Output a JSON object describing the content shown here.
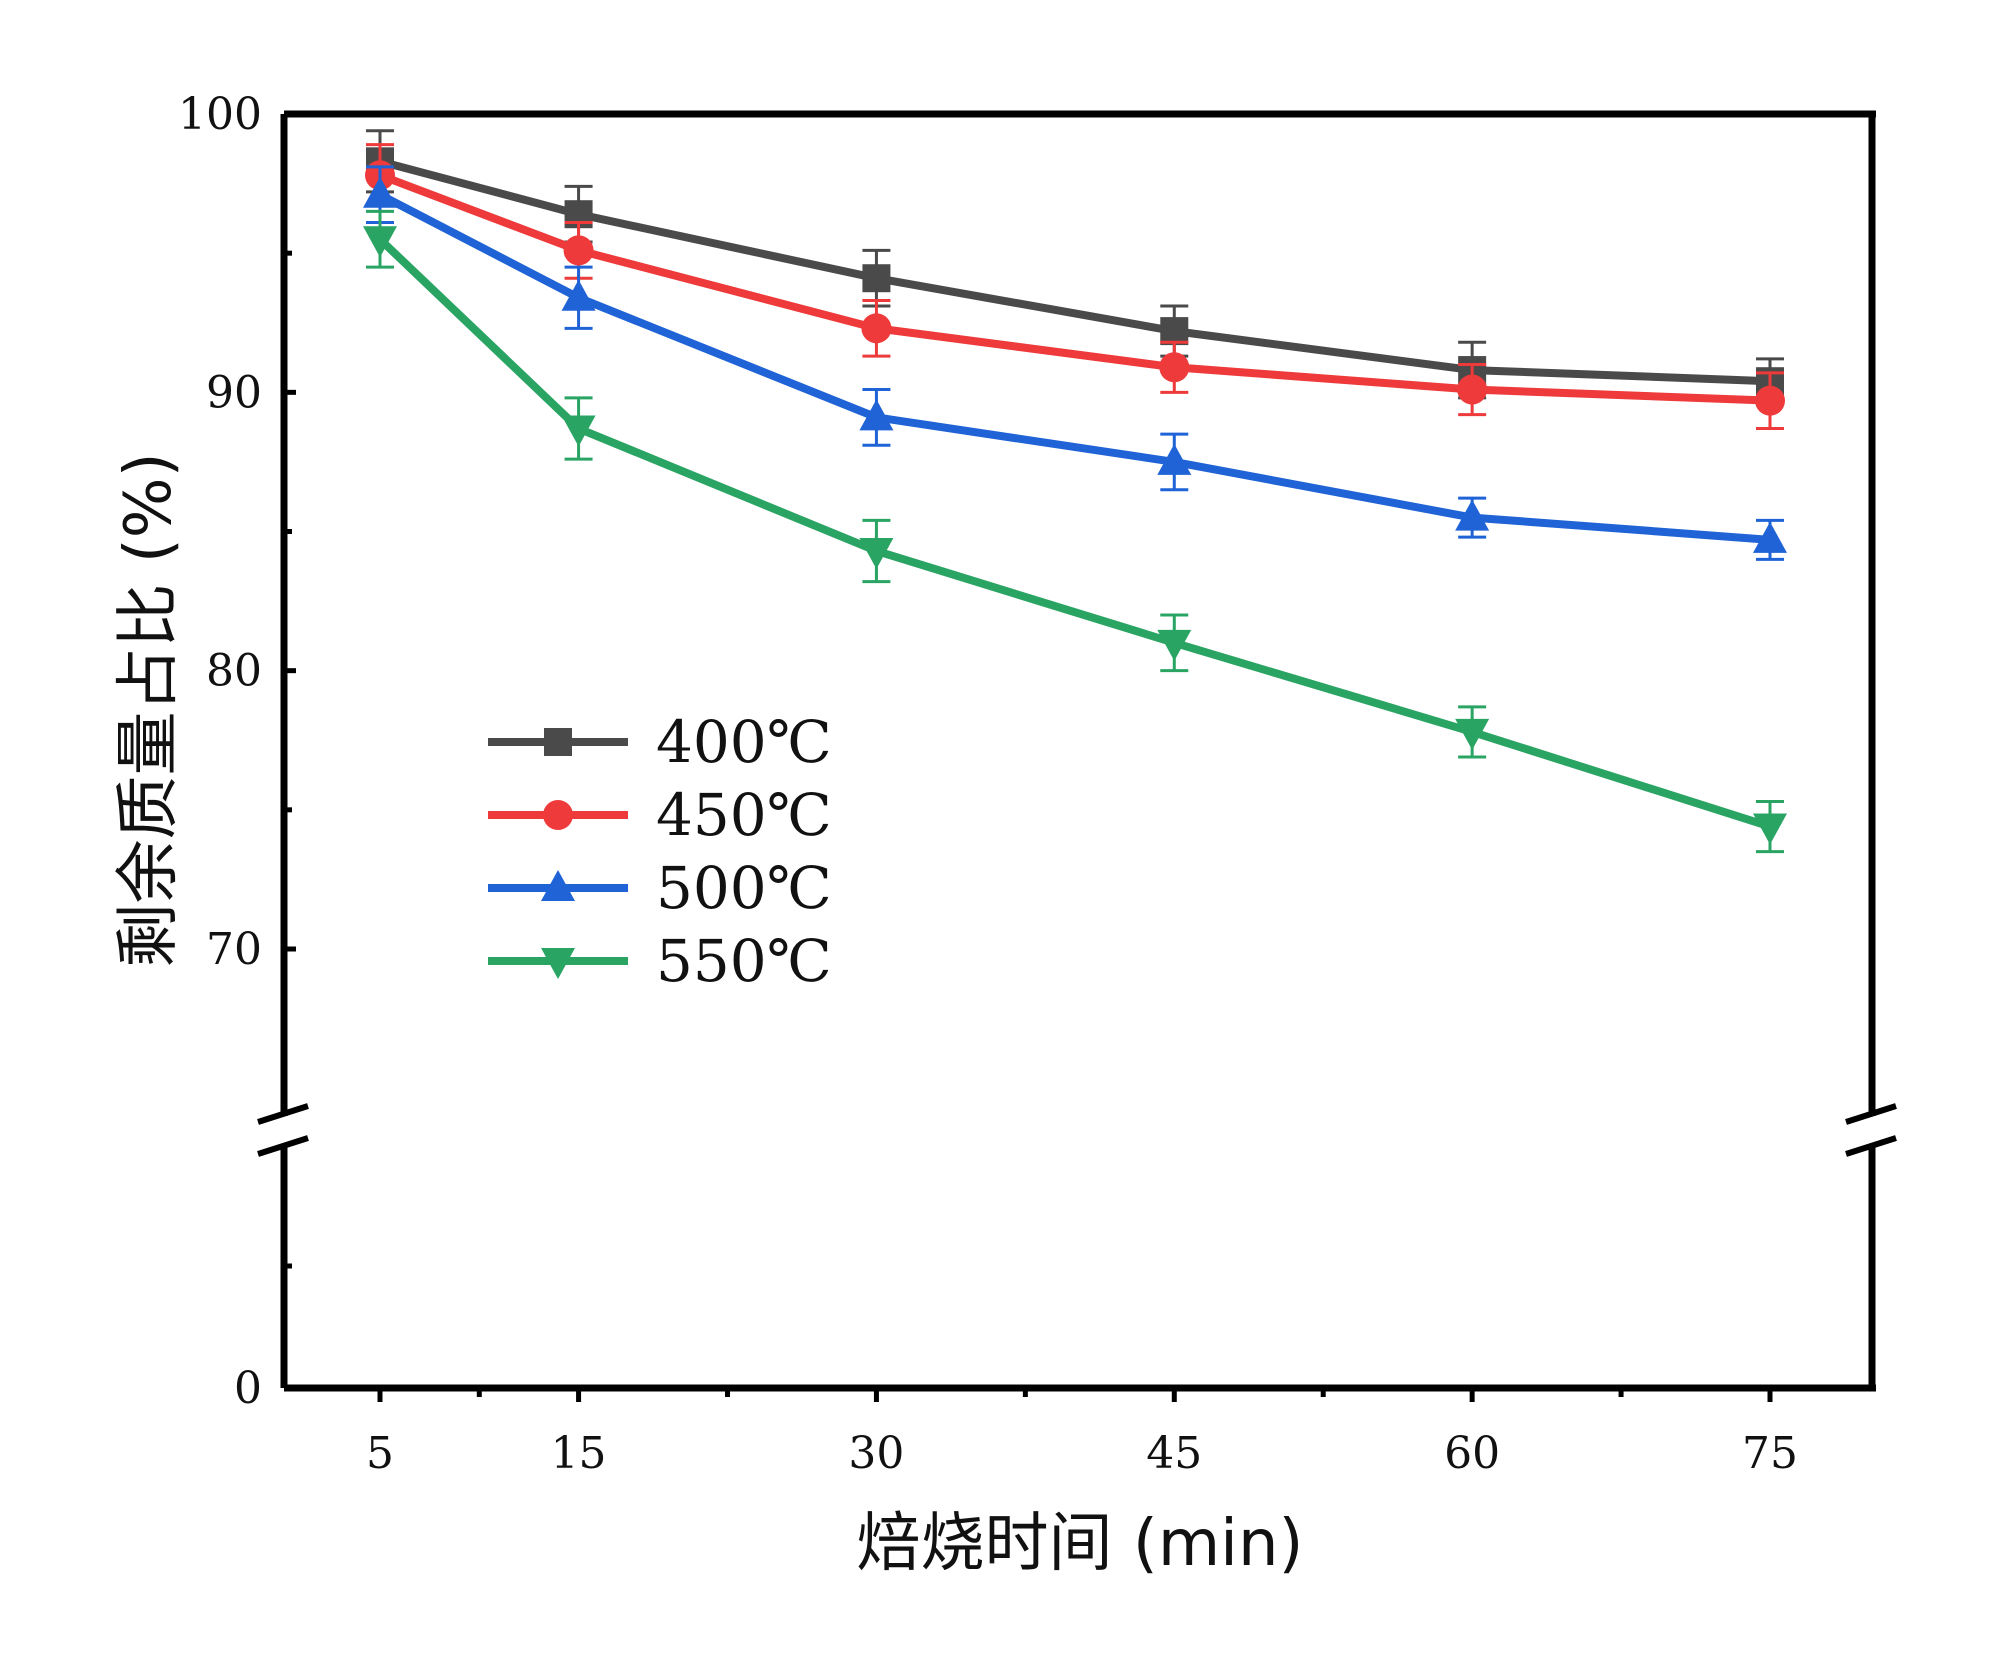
{
  "chart_data": {
    "type": "line",
    "xlabel": "焙烧时间 (min)",
    "ylabel": "剩余质量占比 (%)",
    "x_tick_labels": [
      "5",
      "15",
      "30",
      "45",
      "60",
      "75"
    ],
    "x": [
      5,
      15,
      30,
      45,
      60,
      75
    ],
    "xlim": [
      0,
      80
    ],
    "y_tick_labels": [
      "100",
      "90",
      "80",
      "70",
      "0"
    ],
    "ylim_upper_segment": [
      64,
      100
    ],
    "ylim_lower_segment": [
      0,
      9
    ],
    "axis_break": "y",
    "legend_position": "center-left",
    "series": [
      {
        "name": "400℃",
        "color": "#4a4a4a",
        "marker": "square",
        "values": [
          98.3,
          96.4,
          94.1,
          92.2,
          90.8,
          90.4
        ],
        "errors": [
          1.1,
          1.0,
          1.0,
          0.9,
          1.0,
          0.8
        ]
      },
      {
        "name": "450℃",
        "color": "#ee3a3a",
        "marker": "circle",
        "values": [
          97.8,
          95.1,
          92.3,
          90.9,
          90.1,
          89.7
        ],
        "errors": [
          1.1,
          1.0,
          1.0,
          0.9,
          0.9,
          1.0
        ]
      },
      {
        "name": "500℃",
        "color": "#1f63d6",
        "marker": "triangle-up",
        "values": [
          97.1,
          93.4,
          89.1,
          87.5,
          85.5,
          84.7
        ],
        "errors": [
          1.0,
          1.1,
          1.0,
          1.0,
          0.7,
          0.7
        ]
      },
      {
        "name": "550℃",
        "color": "#2aa463",
        "marker": "triangle-down",
        "values": [
          95.5,
          88.7,
          84.3,
          81.0,
          77.8,
          74.4
        ],
        "errors": [
          1.0,
          1.1,
          1.1,
          1.0,
          0.9,
          0.9
        ]
      }
    ]
  }
}
